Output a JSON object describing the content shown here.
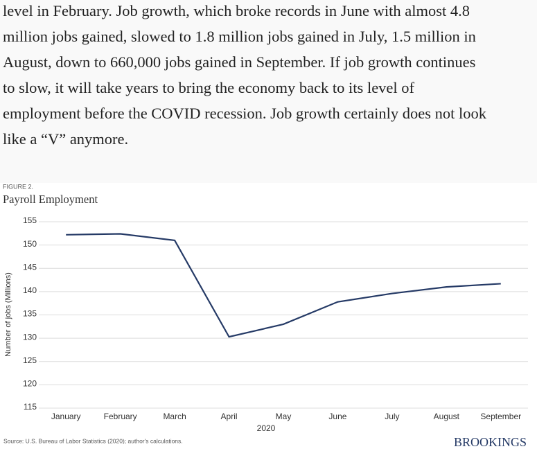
{
  "article": {
    "lines": [
      "level in February. Job growth, which broke records in June with almost 4.8",
      "million jobs gained, slowed to 1.8 million jobs gained in July, 1.5 million in",
      "August, down to 660,000 jobs gained in September. If job growth continues",
      "to slow, it will take years to bring the economy back to its level of",
      "employment before the COVID recession. Job growth certainly does not look",
      "like a “V” anymore."
    ]
  },
  "chart_data": {
    "type": "line",
    "figure_label": "FIGURE 2.",
    "title": "Payroll Employment",
    "ylabel": "Number of jobs (Millions)",
    "xlabel": "2020",
    "source": "Source: U.S. Bureau of Labor Statistics (2020); author's calculations.",
    "brand": "BROOKINGS",
    "categories": [
      "January",
      "February",
      "March",
      "April",
      "May",
      "June",
      "July",
      "August",
      "September"
    ],
    "values": [
      152.2,
      152.4,
      151.0,
      130.3,
      133.0,
      137.8,
      139.6,
      141.0,
      141.7
    ],
    "color": "#253a66",
    "ylim": [
      115,
      155
    ],
    "yticks": [
      115,
      120,
      125,
      130,
      135,
      140,
      145,
      150,
      155
    ],
    "grid": true
  }
}
